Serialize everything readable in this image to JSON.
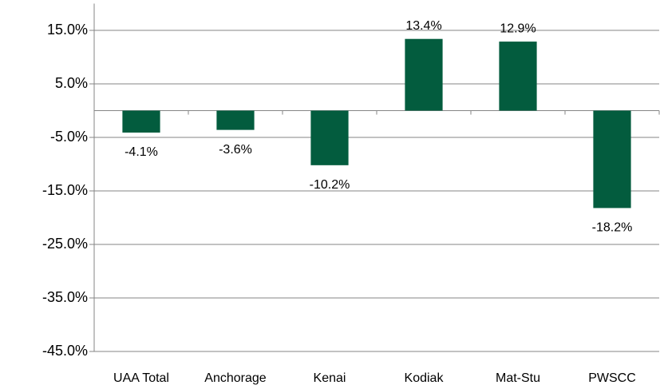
{
  "chart_data": {
    "type": "bar",
    "categories": [
      "UAA Total",
      "Anchorage",
      "Kenai",
      "Kodiak",
      "Mat-Stu",
      "PWSCC"
    ],
    "values": [
      -4.1,
      -3.6,
      -10.2,
      13.4,
      12.9,
      -18.2
    ],
    "value_labels": [
      "-4.1%",
      "-3.6%",
      "-10.2%",
      "13.4%",
      "12.9%",
      "-18.2%"
    ],
    "color": "#035c3e",
    "ylim": [
      -45,
      20
    ],
    "yticks": [
      {
        "value": -45,
        "label": "-45.0%"
      },
      {
        "value": -35,
        "label": "-35.0%"
      },
      {
        "value": -25,
        "label": "-25.0%"
      },
      {
        "value": -15,
        "label": "-15.0%"
      },
      {
        "value": -5,
        "label": "-5.0%"
      },
      {
        "value": 5,
        "label": "5.0%"
      },
      {
        "value": 15,
        "label": "15.0%"
      }
    ],
    "grid": true
  }
}
